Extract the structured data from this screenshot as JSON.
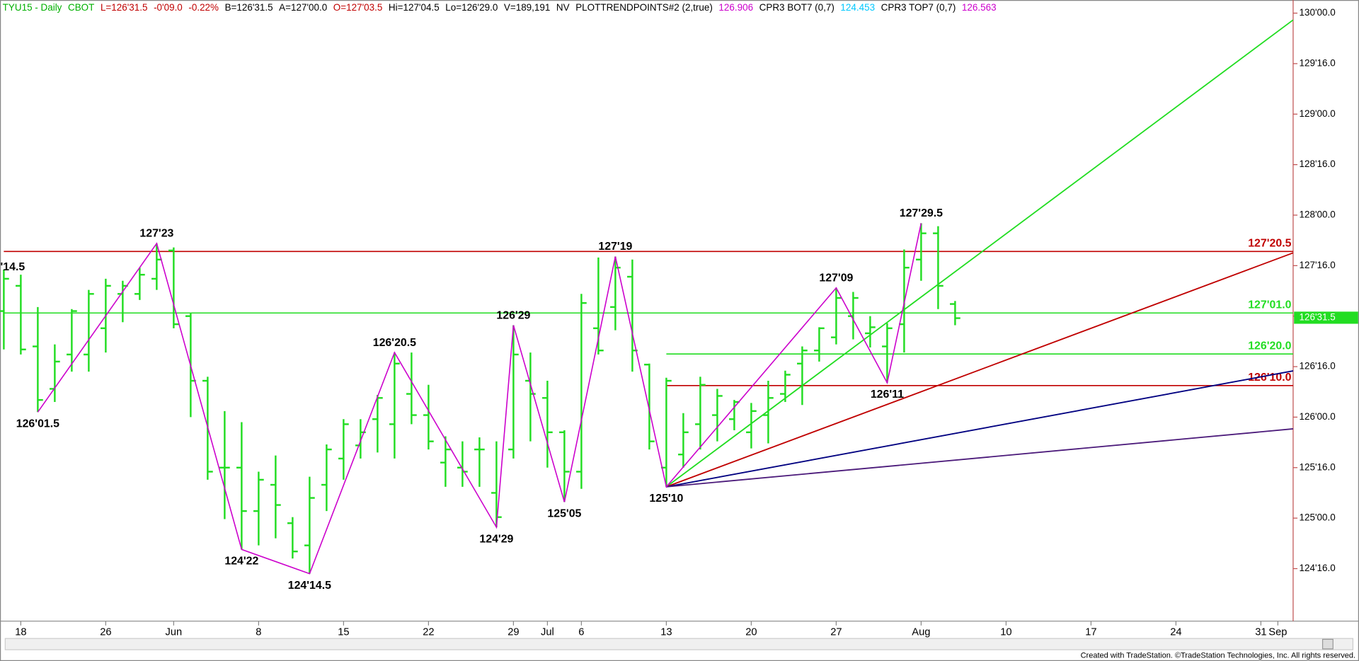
{
  "chart_data": {
    "type": "ohlc",
    "header": [
      {
        "text": "TYU15 - Daily",
        "color": "#00b000"
      },
      {
        "text": "CBOT",
        "color": "#00b000"
      },
      {
        "text": "L=126'31.5",
        "color": "#c00000"
      },
      {
        "text": "-0'09.0",
        "color": "#c00000"
      },
      {
        "text": "-0.22%",
        "color": "#c00000"
      },
      {
        "text": "B=126'31.5",
        "color": "#000000"
      },
      {
        "text": "A=127'00.0",
        "color": "#000000"
      },
      {
        "text": "O=127'03.5",
        "color": "#c00000"
      },
      {
        "text": "Hi=127'04.5",
        "color": "#000000"
      },
      {
        "text": "Lo=126'29.0",
        "color": "#000000"
      },
      {
        "text": "V=189,191",
        "color": "#000000"
      },
      {
        "text": "NV",
        "color": "#000000"
      },
      {
        "text": "PLOTTRENDPOINTS#2 (2,true)",
        "color": "#000000"
      },
      {
        "text": "126.906",
        "color": "#cc00cc"
      },
      {
        "text": "CPR3 BOT7 (0,7)",
        "color": "#000000"
      },
      {
        "text": "124.453",
        "color": "#00c8ff"
      },
      {
        "text": "CPR3 TOP7 (0,7)",
        "color": "#000000"
      },
      {
        "text": "126.563",
        "color": "#cc00cc"
      }
    ],
    "footer": "Created with TradeStation. ©TradeStation Technologies, Inc. All rights reserved.",
    "categories": [
      null,
      "18",
      null,
      null,
      null,
      null,
      "26",
      null,
      null,
      null,
      "Jun",
      null,
      null,
      null,
      null,
      "8",
      null,
      null,
      null,
      null,
      "15",
      null,
      null,
      null,
      null,
      "22",
      null,
      null,
      null,
      null,
      "29",
      null,
      "Jul",
      null,
      "6",
      null,
      null,
      null,
      null,
      "13",
      null,
      null,
      null,
      null,
      "20",
      null,
      null,
      null,
      null,
      "27",
      null,
      null,
      null,
      null,
      "Aug",
      null,
      null,
      null,
      null,
      "10",
      null,
      null,
      null,
      null,
      "17",
      null,
      null,
      null,
      null,
      "24",
      null,
      null,
      null,
      null,
      "31",
      "Sep"
    ],
    "values": [
      [
        127.05,
        127.46,
        126.67,
        127.37
      ],
      [
        127.3,
        127.41,
        126.62,
        126.67
      ],
      [
        126.7,
        127.09,
        126.05,
        126.17
      ],
      [
        126.28,
        126.72,
        126.15,
        126.55
      ],
      [
        126.62,
        127.07,
        126.45,
        127.05
      ],
      [
        126.62,
        127.26,
        126.45,
        127.22
      ],
      [
        126.88,
        127.37,
        126.64,
        127.3
      ],
      [
        127.22,
        127.35,
        126.94,
        127.3
      ],
      [
        127.22,
        127.48,
        127.16,
        127.41
      ],
      [
        127.37,
        127.72,
        127.26,
        127.56
      ],
      [
        127.65,
        127.68,
        126.88,
        126.92
      ],
      [
        127.0,
        127.03,
        126.0,
        126.36
      ],
      [
        126.36,
        126.4,
        125.38,
        125.46
      ],
      [
        125.5,
        126.06,
        124.99,
        125.5
      ],
      [
        125.5,
        125.95,
        124.69,
        125.07
      ],
      [
        125.07,
        125.46,
        124.73,
        125.38
      ],
      [
        125.33,
        125.62,
        124.8,
        125.13
      ],
      [
        124.95,
        125.01,
        124.6,
        124.67
      ],
      [
        124.73,
        125.41,
        124.45,
        125.2
      ],
      [
        125.33,
        125.73,
        125.07,
        125.68
      ],
      [
        125.59,
        125.98,
        125.38,
        125.93
      ],
      [
        125.72,
        125.98,
        125.59,
        125.85
      ],
      [
        125.98,
        126.22,
        125.65,
        126.19
      ],
      [
        125.93,
        126.64,
        125.59,
        126.53
      ],
      [
        126.23,
        126.64,
        125.93,
        126.02
      ],
      [
        126.02,
        126.32,
        125.68,
        125.76
      ],
      [
        125.55,
        125.81,
        125.31,
        125.68
      ],
      [
        125.5,
        125.76,
        125.31,
        125.46
      ],
      [
        125.68,
        125.8,
        125.31,
        125.68
      ],
      [
        125.25,
        125.76,
        124.91,
        125.01
      ],
      [
        125.68,
        126.91,
        125.59,
        126.62
      ],
      [
        126.36,
        126.64,
        125.76,
        126.23
      ],
      [
        126.19,
        126.36,
        125.5,
        125.85
      ],
      [
        125.85,
        125.87,
        125.16,
        125.46
      ],
      [
        125.46,
        127.22,
        125.29,
        127.13
      ],
      [
        126.88,
        127.58,
        126.62,
        126.66
      ],
      [
        127.09,
        127.59,
        126.86,
        127.48
      ],
      [
        127.39,
        127.56,
        126.45,
        126.66
      ],
      [
        126.52,
        126.53,
        125.68,
        125.76
      ],
      [
        125.5,
        126.39,
        125.31,
        126.36
      ],
      [
        125.63,
        126.04,
        125.5,
        125.85
      ],
      [
        125.93,
        126.4,
        125.68,
        126.32
      ],
      [
        126.02,
        126.28,
        125.76,
        126.21
      ],
      [
        125.98,
        126.17,
        125.87,
        126.15
      ],
      [
        125.85,
        126.14,
        125.69,
        126.06
      ],
      [
        126.02,
        126.36,
        125.74,
        126.19
      ],
      [
        126.23,
        126.46,
        126.15,
        126.42
      ],
      [
        126.53,
        126.7,
        126.12,
        126.66
      ],
      [
        126.66,
        126.89,
        126.55,
        126.88
      ],
      [
        126.79,
        127.28,
        126.72,
        127.18
      ],
      [
        127.0,
        127.24,
        126.77,
        127.18
      ],
      [
        126.83,
        127.0,
        126.69,
        126.89
      ],
      [
        126.7,
        126.93,
        126.34,
        126.88
      ],
      [
        126.92,
        127.66,
        126.64,
        127.48
      ],
      [
        127.56,
        127.92,
        127.35,
        127.82
      ],
      [
        127.82,
        127.89,
        127.07,
        127.3
      ],
      [
        127.12,
        127.15,
        126.91,
        126.98
      ],
      null,
      null,
      null,
      null,
      null,
      null,
      null,
      null,
      null,
      null,
      null,
      null,
      null,
      null,
      null,
      null,
      null,
      null,
      null
    ],
    "color": "#22dd22",
    "ylim": [
      123.98,
      130.13
    ],
    "yticks": [
      {
        "value": 124.5,
        "label": "124'16.0"
      },
      {
        "value": 125,
        "label": "125'00.0"
      },
      {
        "value": 125.5,
        "label": "125'16.0"
      },
      {
        "value": 126,
        "label": "126'00.0"
      },
      {
        "value": 126.5,
        "label": "126'16.0"
      },
      {
        "value": 127,
        "label": "127'00.0"
      },
      {
        "value": 127.5,
        "label": "127'16.0"
      },
      {
        "value": 128,
        "label": "128'00.0"
      },
      {
        "value": 128.5,
        "label": "128'16.0"
      },
      {
        "value": 129,
        "label": "129'00.0"
      },
      {
        "value": 129.5,
        "label": "129'16.0"
      },
      {
        "value": 130,
        "label": "130'00.0"
      }
    ],
    "last": {
      "value": 126.984375,
      "label": "126'31.5",
      "color": "#22dd22"
    },
    "zigzag_color": "#cc00cc",
    "annotations": [
      {
        "index": 0,
        "value": 127.45,
        "label": "'14.5"
      }
    ],
    "swings": [
      {
        "index": 2,
        "value": 126.05,
        "label": "126'01.5"
      },
      {
        "index": 9,
        "value": 127.72,
        "label": "127'23"
      },
      {
        "index": 14,
        "value": 124.69,
        "label": "124'22"
      },
      {
        "index": 18,
        "value": 124.45,
        "label": "124'14.5"
      },
      {
        "index": 23,
        "value": 126.64,
        "label": "126'20.5"
      },
      {
        "index": 29,
        "value": 124.91,
        "label": "124'29"
      },
      {
        "index": 30,
        "value": 126.91,
        "label": "126'29"
      },
      {
        "index": 33,
        "value": 125.16,
        "label": "125'05"
      },
      {
        "index": 36,
        "value": 127.59,
        "label": "127'19"
      },
      {
        "index": 39,
        "value": 125.31,
        "label": "125'10"
      },
      {
        "index": 49,
        "value": 127.28,
        "label": "127'09"
      },
      {
        "index": 52,
        "value": 126.34,
        "label": "126'11"
      },
      {
        "index": 54,
        "value": 127.92,
        "label": "127'29.5"
      }
    ],
    "levels": [
      {
        "value": 127.640625,
        "label": "127'20.5",
        "color": "#c00000",
        "start_index": 0
      },
      {
        "value": 127.03125,
        "label": "127'01.0",
        "color": "#22dd22",
        "start_index": 0
      },
      {
        "value": 126.625,
        "label": "126'20.0",
        "color": "#22dd22",
        "start_index": 39
      },
      {
        "value": 126.3125,
        "label": "126'10.0",
        "color": "#c00000",
        "start_index": 39
      }
    ],
    "trendlines": [
      {
        "start": [
          39,
          125.31
        ],
        "end": [
          75,
          129.82
        ],
        "color": "#22dd22"
      },
      {
        "start": [
          39,
          125.31
        ],
        "end": [
          75,
          127.57
        ],
        "color": "#c00000"
      },
      {
        "start": [
          39,
          125.31
        ],
        "end": [
          75,
          126.43
        ],
        "color": "#000080"
      },
      {
        "start": [
          39,
          125.31
        ],
        "end": [
          75,
          125.87
        ],
        "color": "#4b1a7a"
      }
    ]
  }
}
